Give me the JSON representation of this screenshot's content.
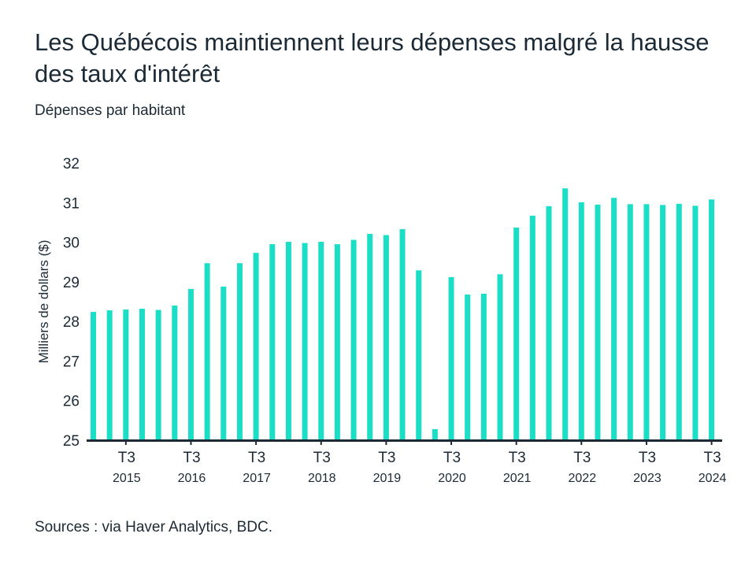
{
  "title": "Les Québécois maintiennent leurs dépenses malgré la hausse des taux d'intérêt",
  "subtitle": "Dépenses par habitant",
  "source": "Sources : via Haver Analytics, BDC.",
  "colors": {
    "bar": "#1adfc6",
    "text": "#1c2a36",
    "axis": "#1c2a36"
  },
  "chart_data": {
    "type": "bar",
    "title": "Les Québécois maintiennent leurs dépenses malgré la hausse des taux d'intérêt",
    "subtitle": "Dépenses par habitant",
    "xlabel": "",
    "ylabel": "Milliers de dollars ($)",
    "ylim": [
      25,
      32
    ],
    "yticks": [
      25,
      26,
      27,
      28,
      29,
      30,
      31,
      32
    ],
    "grid": false,
    "categories": [
      "2015 T1",
      "2015 T2",
      "2015 T3",
      "2015 T4",
      "2016 T1",
      "2016 T2",
      "2016 T3",
      "2016 T4",
      "2017 T1",
      "2017 T2",
      "2017 T3",
      "2017 T4",
      "2018 T1",
      "2018 T2",
      "2018 T3",
      "2018 T4",
      "2019 T1",
      "2019 T2",
      "2019 T3",
      "2019 T4",
      "2020 T1",
      "2020 T2",
      "2020 T3",
      "2020 T4",
      "2021 T1",
      "2021 T2",
      "2021 T3",
      "2021 T4",
      "2022 T1",
      "2022 T2",
      "2022 T3",
      "2022 T4",
      "2023 T1",
      "2023 T2",
      "2023 T3",
      "2023 T4",
      "2024 T1",
      "2024 T2",
      "2024 T3"
    ],
    "values": [
      28.24,
      28.28,
      28.3,
      28.32,
      28.29,
      28.4,
      28.82,
      29.47,
      28.88,
      29.47,
      29.73,
      29.95,
      30.01,
      29.98,
      30.01,
      29.95,
      30.06,
      30.21,
      30.18,
      30.33,
      29.29,
      25.28,
      29.12,
      28.68,
      28.7,
      29.19,
      30.37,
      30.67,
      30.91,
      31.36,
      31.01,
      30.95,
      31.12,
      30.96,
      30.96,
      30.94,
      30.97,
      30.92,
      31.08
    ],
    "xtick_labels": [
      {
        "index": 2,
        "quarter": "T3",
        "year": "2015"
      },
      {
        "index": 6,
        "quarter": "T3",
        "year": "2016"
      },
      {
        "index": 10,
        "quarter": "T3",
        "year": "2017"
      },
      {
        "index": 14,
        "quarter": "T3",
        "year": "2018"
      },
      {
        "index": 18,
        "quarter": "T3",
        "year": "2019"
      },
      {
        "index": 22,
        "quarter": "T3",
        "year": "2020"
      },
      {
        "index": 26,
        "quarter": "T3",
        "year": "2021"
      },
      {
        "index": 30,
        "quarter": "T3",
        "year": "2022"
      },
      {
        "index": 34,
        "quarter": "T3",
        "year": "2023"
      },
      {
        "index": 38,
        "quarter": "T3",
        "year": "2024"
      }
    ]
  }
}
